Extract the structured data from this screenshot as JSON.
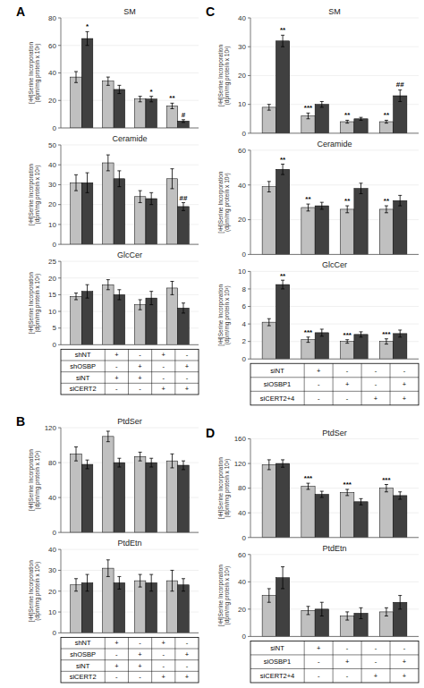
{
  "chart_data": [
    {
      "type": "bar",
      "panel_label": "A",
      "title": "SM",
      "ylabel": "[³H]Serine Incorporation\n(dpm/mg protein x 10³)",
      "categories": [
        null,
        null,
        null,
        null
      ],
      "tick_labels": "y",
      "ylim": [
        0,
        80
      ],
      "yticks": [
        0,
        20,
        40,
        60,
        80
      ],
      "series": [
        {
          "color": "#c0c0c0",
          "values": [
            37,
            34,
            21,
            16
          ],
          "errors": [
            4,
            3,
            2,
            2
          ],
          "annotations": [
            null,
            null,
            null,
            "**"
          ]
        },
        {
          "color": "#404040",
          "values": [
            65,
            28,
            21,
            5
          ],
          "errors": [
            5,
            3,
            2,
            1
          ],
          "annotations": [
            "*",
            null,
            "*",
            "#"
          ]
        }
      ]
    },
    {
      "type": "bar",
      "title": "Ceramide",
      "ylabel": "[³H]Serine Incorporation\n(dpm/mg protein x 10³)",
      "categories": [
        null,
        null,
        null,
        null
      ],
      "tick_labels": "y",
      "ylim": [
        0,
        50
      ],
      "yticks": [
        0,
        10,
        20,
        30,
        40,
        50
      ],
      "series": [
        {
          "color": "#c0c0c0",
          "values": [
            31,
            41,
            24,
            33
          ],
          "errors": [
            4,
            4,
            3,
            5
          ]
        },
        {
          "color": "#404040",
          "values": [
            31,
            33,
            23,
            19
          ],
          "errors": [
            5,
            4,
            3,
            2
          ],
          "annotations": [
            null,
            null,
            null,
            "##"
          ]
        }
      ]
    },
    {
      "type": "bar",
      "title": "GlcCer",
      "ylabel": "[³H]Serine Incorporation\n(dpm/mg protein x 10³)",
      "categories": [
        null,
        null,
        null,
        null
      ],
      "tick_labels": "y",
      "ylim": [
        0,
        25
      ],
      "yticks": [
        0,
        5,
        10,
        15,
        20,
        25
      ],
      "series": [
        {
          "color": "#c0c0c0",
          "values": [
            14.5,
            18,
            12,
            17
          ],
          "errors": [
            1,
            1.5,
            1.5,
            2
          ]
        },
        {
          "color": "#404040",
          "values": [
            16,
            15,
            14,
            11
          ],
          "errors": [
            2,
            1.5,
            2,
            1.5
          ]
        }
      ]
    },
    {
      "type": "table",
      "rows": [
        "shNT",
        "shOSBP",
        "siNT",
        "siCERT2"
      ],
      "cells": [
        [
          "+",
          "-",
          "+",
          "-"
        ],
        [
          "-",
          "+",
          "-",
          "+"
        ],
        [
          "+",
          "+",
          "-",
          "-"
        ],
        [
          "-",
          "-",
          "+",
          "+"
        ]
      ]
    },
    {
      "type": "bar",
      "panel_label": "B",
      "title": "PtdSer",
      "ylabel": "[³H]Serine Incorporation\n(dpm/mg protein x 10³)",
      "categories": [
        null,
        null,
        null,
        null
      ],
      "tick_labels": "y",
      "ylim": [
        0,
        120
      ],
      "yticks": [
        0,
        40,
        80,
        120
      ],
      "series": [
        {
          "color": "#c0c0c0",
          "values": [
            90,
            110,
            87,
            82
          ],
          "errors": [
            8,
            6,
            5,
            8
          ]
        },
        {
          "color": "#404040",
          "values": [
            78,
            80,
            80,
            77
          ],
          "errors": [
            5,
            5,
            5,
            5
          ]
        }
      ]
    },
    {
      "type": "bar",
      "title": "PtdEtn",
      "ylabel": "[³H]Serine Incorporation\n(dpm/mg protein x 10³)",
      "categories": [
        null,
        null,
        null,
        null
      ],
      "tick_labels": "y",
      "ylim": [
        0,
        40
      ],
      "yticks": [
        0,
        10,
        20,
        30,
        40
      ],
      "series": [
        {
          "color": "#c0c0c0",
          "values": [
            23,
            31,
            25,
            25
          ],
          "errors": [
            3,
            4,
            3,
            5
          ]
        },
        {
          "color": "#404040",
          "values": [
            24,
            24,
            24,
            23
          ],
          "errors": [
            4,
            3,
            4,
            3
          ]
        }
      ]
    },
    {
      "type": "table",
      "rows": [
        "shNT",
        "shOSBP",
        "siNT",
        "siCERT2"
      ],
      "cells": [
        [
          "+",
          "-",
          "+",
          "-"
        ],
        [
          "-",
          "+",
          "-",
          "+"
        ],
        [
          "+",
          "+",
          "-",
          "-"
        ],
        [
          "-",
          "-",
          "+",
          "+"
        ]
      ]
    },
    {
      "type": "bar",
      "panel_label": "C",
      "title": "SM",
      "ylabel": "[³H]Serine Incorporation\n(dpm/mg protein x 10³)",
      "categories": [
        null,
        null,
        null,
        null
      ],
      "tick_labels": "y",
      "ylim": [
        0,
        40
      ],
      "yticks": [
        0,
        10,
        20,
        30,
        40
      ],
      "series": [
        {
          "color": "#c0c0c0",
          "values": [
            9,
            6,
            4,
            4
          ],
          "errors": [
            1,
            1,
            0.5,
            0.5
          ],
          "annotations": [
            null,
            "***",
            "**",
            "**"
          ]
        },
        {
          "color": "#404040",
          "values": [
            32,
            10,
            5,
            13
          ],
          "errors": [
            2,
            1,
            0.5,
            2
          ],
          "annotations": [
            "**",
            null,
            null,
            "##"
          ]
        }
      ]
    },
    {
      "type": "bar",
      "title": "Ceramide",
      "ylabel": "[³H]Serine Incorporation\n(dpm/mg protein x 10³)",
      "categories": [
        null,
        null,
        null,
        null
      ],
      "tick_labels": "y",
      "ylim": [
        0,
        60
      ],
      "yticks": [
        0,
        20,
        40,
        60
      ],
      "series": [
        {
          "color": "#c0c0c0",
          "values": [
            39,
            27,
            26,
            26
          ],
          "errors": [
            3,
            2,
            2,
            2
          ],
          "annotations": [
            null,
            "**",
            "**",
            "**"
          ]
        },
        {
          "color": "#404040",
          "values": [
            49,
            28,
            38,
            31
          ],
          "errors": [
            3,
            2,
            3,
            3
          ],
          "annotations": [
            "**",
            null,
            null,
            null
          ]
        }
      ]
    },
    {
      "type": "bar",
      "title": "GlcCer",
      "ylabel": "[³H]Serine Incorporation\n(dpm/mg protein x 10³)",
      "categories": [
        null,
        null,
        null,
        null
      ],
      "tick_labels": "y",
      "ylim": [
        0,
        10
      ],
      "yticks": [
        0,
        2,
        4,
        6,
        8,
        10
      ],
      "series": [
        {
          "color": "#c0c0c0",
          "values": [
            4.2,
            2.2,
            2.0,
            2.0
          ],
          "errors": [
            0.4,
            0.3,
            0.2,
            0.3
          ],
          "annotations": [
            null,
            "***",
            "***",
            "***"
          ]
        },
        {
          "color": "#404040",
          "values": [
            8.5,
            3.0,
            2.8,
            2.9
          ],
          "errors": [
            0.5,
            0.4,
            0.3,
            0.4
          ],
          "annotations": [
            "**",
            null,
            null,
            null
          ]
        }
      ]
    },
    {
      "type": "table",
      "rows": [
        "siNT",
        "siOSBP1",
        "siCERT2+4"
      ],
      "cells": [
        [
          "+",
          "-",
          "-",
          "-"
        ],
        [
          "-",
          "+",
          "-",
          "+"
        ],
        [
          "-",
          "-",
          "+",
          "+"
        ]
      ]
    },
    {
      "type": "bar",
      "panel_label": "D",
      "title": "PtdSer",
      "ylabel": "[³H]Serine Incorporation\n(dpm/mg protein x 10³)",
      "categories": [
        null,
        null,
        null,
        null
      ],
      "tick_labels": "y",
      "ylim": [
        0,
        160
      ],
      "yticks": [
        0,
        40,
        80,
        120,
        160
      ],
      "series": [
        {
          "color": "#c0c0c0",
          "values": [
            118,
            83,
            73,
            80
          ],
          "errors": [
            8,
            5,
            5,
            6
          ],
          "annotations": [
            null,
            "***",
            "***",
            "***"
          ]
        },
        {
          "color": "#404040",
          "values": [
            120,
            70,
            58,
            68
          ],
          "errors": [
            6,
            5,
            5,
            6
          ]
        }
      ]
    },
    {
      "type": "bar",
      "title": "PtdEtn",
      "ylabel": "[³H]Serine Incorporation\n(dpm/mg protein x 10³)",
      "categories": [
        null,
        null,
        null,
        null
      ],
      "tick_labels": "y",
      "ylim": [
        0,
        60
      ],
      "yticks": [
        0,
        20,
        40,
        60
      ],
      "series": [
        {
          "color": "#c0c0c0",
          "values": [
            30,
            19,
            15,
            18
          ],
          "errors": [
            5,
            3,
            3,
            3
          ]
        },
        {
          "color": "#404040",
          "values": [
            43,
            20,
            17,
            25
          ],
          "errors": [
            8,
            5,
            4,
            5
          ]
        }
      ]
    },
    {
      "type": "table",
      "rows": [
        "siNT",
        "siOSBP1",
        "siCERT2+4"
      ],
      "cells": [
        [
          "+",
          "-",
          "-",
          "-"
        ],
        [
          "-",
          "+",
          "-",
          "+"
        ],
        [
          "-",
          "-",
          "+",
          "+"
        ]
      ]
    }
  ]
}
